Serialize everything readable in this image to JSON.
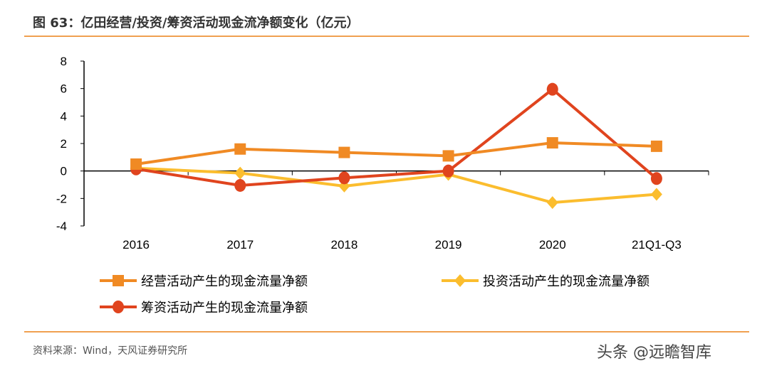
{
  "title": "图 63：亿田经营/投资/筹资活动现金流净额变化（亿元）",
  "source": "资料来源：Wind，天风证券研究所",
  "watermark": "头条 @远瞻智库",
  "chart_data": {
    "type": "line",
    "categories": [
      "2016",
      "2017",
      "2018",
      "2019",
      "2020",
      "21Q1-Q3"
    ],
    "ylim": [
      -4,
      8
    ],
    "yticks": [
      -4,
      -2,
      0,
      2,
      4,
      6,
      8
    ],
    "legend_position": "bottom",
    "series": [
      {
        "name": "经营活动产生的现金流量净额",
        "color": "#f08a24",
        "marker": "square",
        "values": [
          0.5,
          1.6,
          1.35,
          1.1,
          2.05,
          1.8
        ]
      },
      {
        "name": "投资活动产生的现金流量净额",
        "color": "#fbbd2e",
        "marker": "diamond",
        "values": [
          0.2,
          -0.15,
          -1.1,
          -0.25,
          -2.3,
          -1.7
        ]
      },
      {
        "name": "筹资活动产生的现金流量净额",
        "color": "#e0441e",
        "marker": "circle",
        "values": [
          0.15,
          -1.05,
          -0.5,
          0.0,
          5.95,
          -0.55
        ]
      }
    ]
  }
}
